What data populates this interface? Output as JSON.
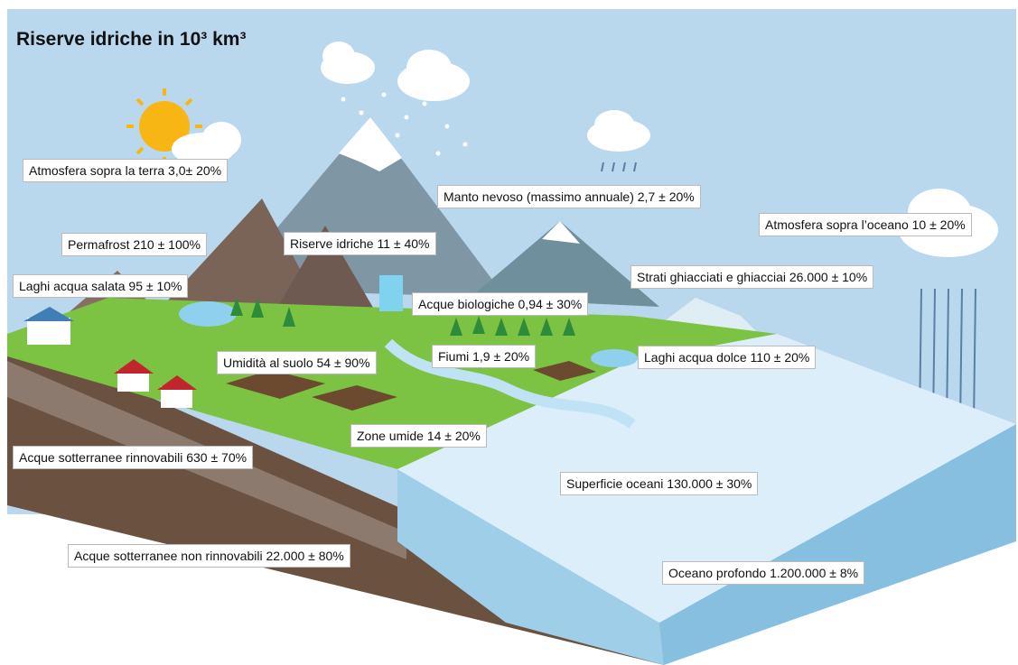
{
  "header": {
    "title": "Riserve idriche in 10³ km³"
  },
  "labels": [
    "Atmosfera sopra la terra 3,0± 20%",
    "Manto nevoso (massimo annuale) 2,7 ± 20%",
    "Atmosfera sopra l’oceano 10 ± 20%",
    "Permafrost 210 ± 100%",
    "Riserve idriche 11 ± 40%",
    "Strati ghiacciati e ghiacciai 26.000 ± 10%",
    "Laghi acqua salata 95 ± 10%",
    "Acque biologiche 0,94 ± 30%",
    "Umidità al suolo 54 ± 90%",
    "Fiumi 1,9 ± 20%",
    "Laghi acqua dolce 110 ± 20%",
    "Zone umide 14 ± 20%",
    "Acque sotterranee rinnovabili 630 ± 70%",
    "Superficie oceani 130.000 ± 30%",
    "Acque sotterranee non rinnovabili 22.000 ± 80%",
    "Oceano profondo 1.200.000 ± 8%"
  ]
}
